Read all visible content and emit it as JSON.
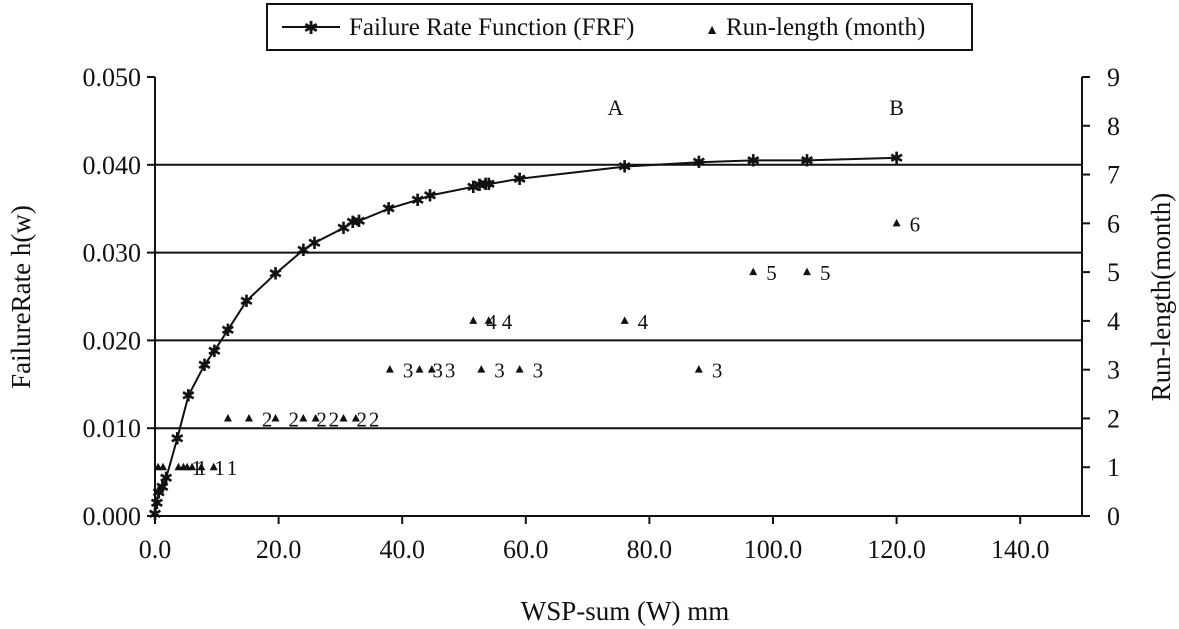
{
  "chart_data": {
    "type": "line",
    "title": "",
    "xlabel": "WSP-sum (W) mm",
    "ylabel": "FailureRate h(w)",
    "y2label": "Run-length(month)",
    "xlim": [
      0,
      150
    ],
    "ylim": [
      0,
      0.05
    ],
    "y2lim": [
      0,
      9
    ],
    "xticks": [
      "0.0",
      "20.0",
      "40.0",
      "60.0",
      "80.0",
      "100.0",
      "120.0",
      "140.0"
    ],
    "yticks": [
      "0.000",
      "0.010",
      "0.020",
      "0.030",
      "0.040",
      "0.050"
    ],
    "y2ticks": [
      "0",
      "1",
      "2",
      "3",
      "4",
      "5",
      "6",
      "7",
      "8",
      "9"
    ],
    "grid": "horizontal major lines at 0.010, 0.020, 0.030, 0.040",
    "legend_position": "top-center",
    "annotations": [
      {
        "text": "A",
        "x": 74.5,
        "y": 0.0457
      },
      {
        "text": "B",
        "x": 120.0,
        "y": 0.0457
      }
    ],
    "series": [
      {
        "name": "Failure Rate Function (FRF)",
        "axis": "left",
        "style": "line with star markers",
        "x": [
          0,
          0.3,
          0.6,
          1.2,
          1.8,
          3.6,
          5.4,
          8.0,
          9.6,
          11.8,
          14.8,
          19.5,
          24.0,
          25.8,
          30.5,
          32.0,
          33.0,
          37.8,
          42.5,
          44.5,
          51.5,
          52.5,
          53.5,
          54.0,
          59.0,
          76.0,
          88.0,
          96.8,
          105.5,
          120.0
        ],
        "y": [
          0.0002,
          0.0015,
          0.0027,
          0.0033,
          0.0043,
          0.0088,
          0.0137,
          0.0172,
          0.0188,
          0.0212,
          0.0245,
          0.0276,
          0.0303,
          0.0311,
          0.0328,
          0.0335,
          0.0336,
          0.035,
          0.036,
          0.0365,
          0.0375,
          0.0377,
          0.0378,
          0.0378,
          0.0384,
          0.0398,
          0.0403,
          0.0405,
          0.0405,
          0.0408
        ]
      },
      {
        "name": "Run-length (month)",
        "axis": "right",
        "style": "triangle markers with value labels",
        "x": [
          0.5,
          1.3,
          3.8,
          4.6,
          5.2,
          6.0,
          7.5,
          9.5,
          11.8,
          15.2,
          19.5,
          24.0,
          26.0,
          30.5,
          32.5,
          38.0,
          42.8,
          44.8,
          51.5,
          54.0,
          52.8,
          59.0,
          76.0,
          88.0,
          96.8,
          105.5,
          120.0
        ],
        "y": [
          1,
          1,
          1,
          1,
          1,
          1,
          1,
          1,
          2,
          2,
          2,
          2,
          2,
          2,
          2,
          3,
          3,
          3,
          4,
          4,
          3,
          3,
          4,
          3,
          5,
          5,
          6
        ],
        "labels": [
          "",
          "",
          "1",
          "1",
          "",
          "",
          "1",
          "1",
          "",
          "2",
          "2",
          "2",
          "2",
          "2",
          "2",
          "3",
          "3",
          "3",
          "4",
          "4",
          "3",
          "3",
          "4",
          "3",
          "5",
          "5",
          "6"
        ]
      }
    ]
  }
}
